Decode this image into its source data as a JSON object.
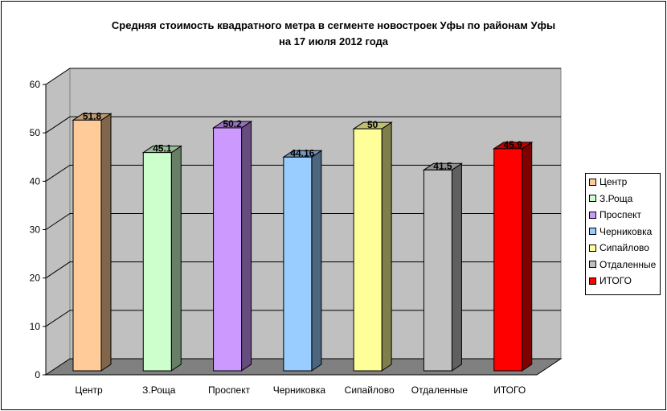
{
  "chart_data": {
    "type": "bar",
    "title": "Средняя стоимость квадратного метра в сегменте новостроек Уфы по районам Уфы",
    "subtitle": "на 17 июля 2012 года",
    "categories": [
      "Центр",
      "З.Роща",
      "Проспект",
      "Черниковка",
      "Сипайлово",
      "Отдаленные",
      "ИТОГО"
    ],
    "values": [
      51.8,
      45.1,
      50.2,
      44.16,
      50,
      41.5,
      45.9
    ],
    "value_labels": [
      "51.8",
      "45.1",
      "50.2",
      "44.16",
      "50",
      "41.5",
      "45.9"
    ],
    "colors": [
      "#FFCC99",
      "#CCFFCC",
      "#CC99FF",
      "#99CCFF",
      "#FFFF99",
      "#C0C0C0",
      "#FF0000"
    ],
    "ylim": [
      0,
      60
    ],
    "yticks": [
      "0",
      "10",
      "20",
      "30",
      "40",
      "50",
      "60"
    ],
    "grid": true,
    "style": "3d",
    "legend": "right",
    "legend_entries": [
      "Центр",
      "З.Роща",
      "Проспект",
      "Черниковка",
      "Сипайлово",
      "Отдаленные",
      "ИТОГО"
    ]
  }
}
